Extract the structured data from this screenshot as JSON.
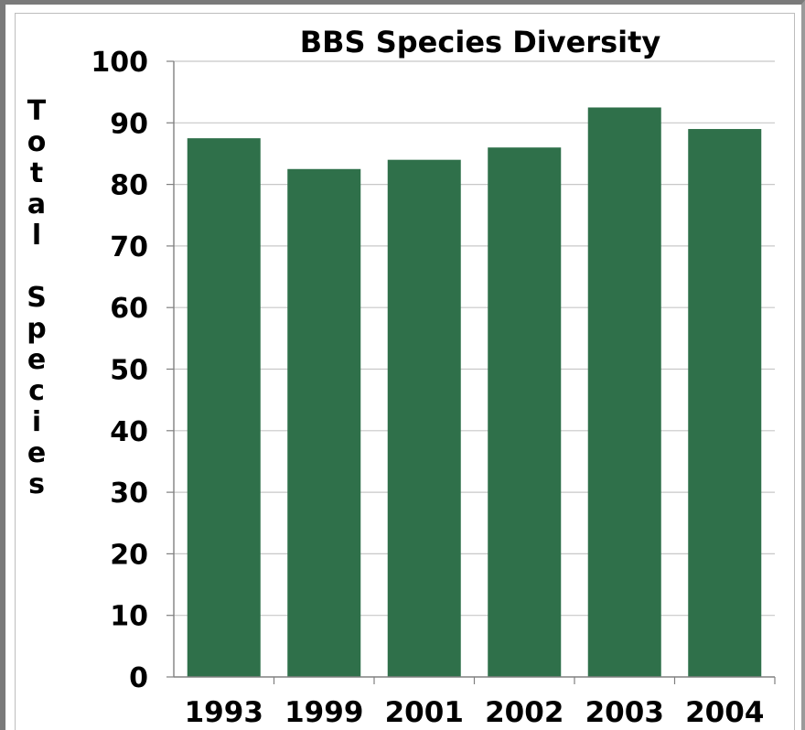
{
  "chart_data": {
    "type": "bar",
    "title": "BBS Species Diversity",
    "xlabel": "",
    "ylabel_lines": [
      "Total",
      "Species"
    ],
    "categories": [
      "1993",
      "1999",
      "2001",
      "2002",
      "2003",
      "2004"
    ],
    "values": [
      87.5,
      82.5,
      84,
      86,
      92.5,
      89
    ],
    "ylim": [
      0,
      100
    ],
    "yticks": [
      0,
      10,
      20,
      30,
      40,
      50,
      60,
      70,
      80,
      90,
      100
    ],
    "grid": true,
    "colors": {
      "bar": "#2f704a",
      "grid": "#c8c8c8",
      "axis": "#808080"
    }
  }
}
